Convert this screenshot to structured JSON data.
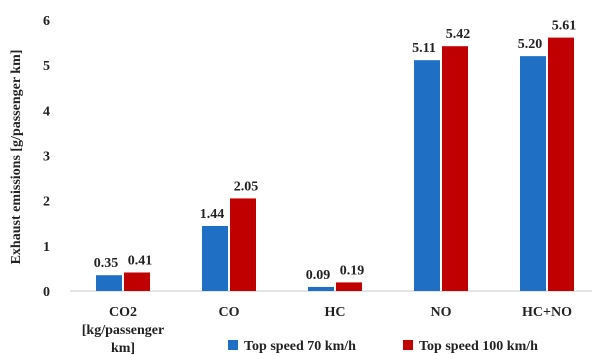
{
  "chart_data": {
    "type": "bar",
    "title": "",
    "ylabel": "Exhaust emissions [g/passenger km]",
    "xlabel": "",
    "ylim": [
      0,
      6
    ],
    "yticks": [
      "0",
      "1",
      "2",
      "3",
      "4",
      "5",
      "6"
    ],
    "categories": [
      [
        "CO2",
        "[kg/passenger",
        "km]"
      ],
      [
        "CO"
      ],
      [
        "HC"
      ],
      [
        "NO"
      ],
      [
        "HC+NO"
      ]
    ],
    "series": [
      {
        "name": "Top speed 70 km/h",
        "color": "#1f6fc5",
        "values": [
          0.35,
          1.44,
          0.09,
          5.11,
          5.2
        ],
        "labels": [
          "0.35",
          "1.44",
          "0.09",
          "5.11",
          "5.20"
        ]
      },
      {
        "name": "Top speed 100 km/h",
        "color": "#c00000",
        "values": [
          0.41,
          2.05,
          0.19,
          5.42,
          5.61
        ],
        "labels": [
          "0.41",
          "2.05",
          "0.19",
          "5.42",
          "5.61"
        ]
      }
    ],
    "legend": "bottom-right",
    "grid": false
  }
}
